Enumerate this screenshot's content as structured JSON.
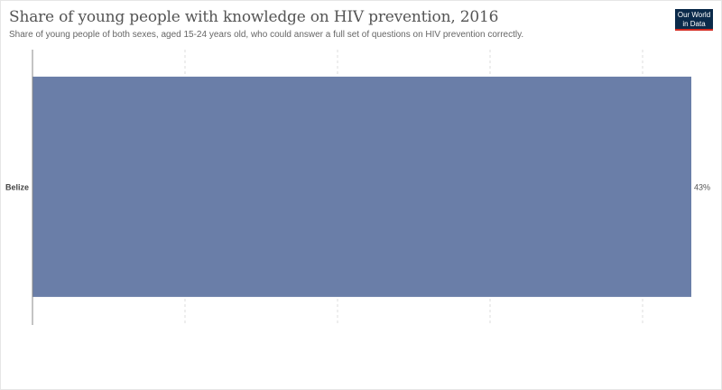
{
  "header": {
    "title": "Share of young people with knowledge on HIV prevention, 2016",
    "subtitle": "Share of young people of both sexes, aged 15-24 years old, who could answer a full set of questions on HIV prevention correctly."
  },
  "logo": {
    "line1": "Our World",
    "line2": "in Data",
    "bg_color": "#0b2a4a",
    "accent_color": "#d42b21"
  },
  "chart_data": {
    "type": "bar",
    "orientation": "horizontal",
    "categories": [
      "Belize"
    ],
    "values": [
      43
    ],
    "value_labels": [
      "43%"
    ],
    "xlim": [
      0,
      43
    ],
    "grid": "vertical-dashed",
    "bar_color": "#6a7ea8"
  }
}
